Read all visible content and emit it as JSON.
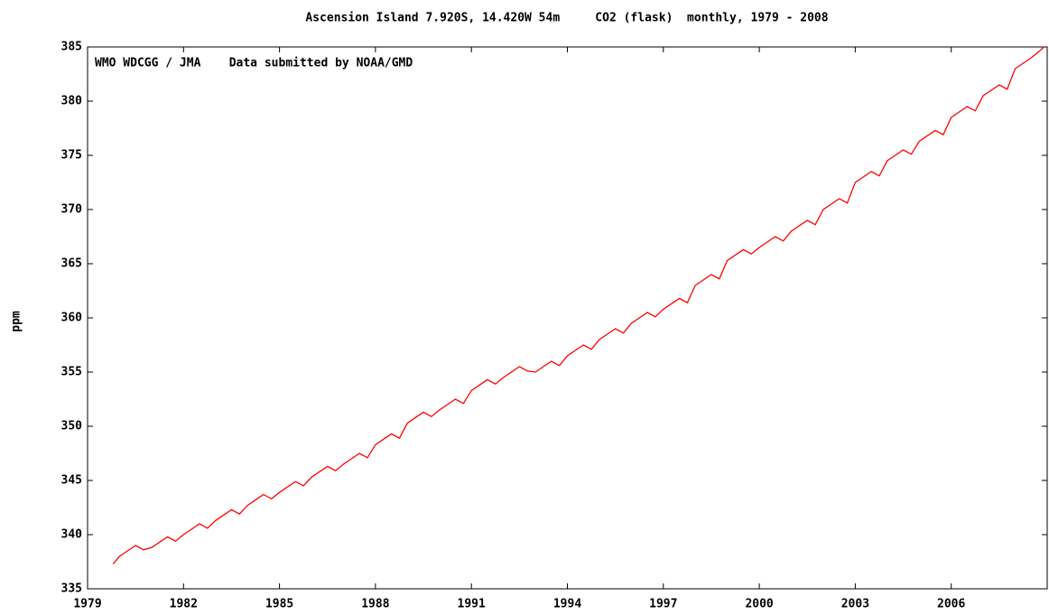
{
  "chart_data": {
    "type": "line",
    "title": "Ascension Island 7.920S, 14.420W 54m     CO2 (flask)  monthly, 1979 - 2008",
    "annotation": "WMO WDCGG / JMA    Data submitted by NOAA/GMD",
    "y_label": "ppm",
    "xlim": [
      1979,
      2009
    ],
    "xticks": [
      1979,
      1982,
      1985,
      1988,
      1991,
      1994,
      1997,
      2000,
      2003,
      2006
    ],
    "ylim": [
      335,
      385
    ],
    "yticks": [
      335,
      340,
      345,
      350,
      355,
      360,
      365,
      370,
      375,
      380,
      385
    ],
    "x": [
      1979.8,
      1980,
      1980.25,
      1980.5,
      1980.75,
      1981,
      1981.25,
      1981.5,
      1981.75,
      1982,
      1982.25,
      1982.5,
      1982.75,
      1983,
      1983.25,
      1983.5,
      1983.75,
      1984,
      1984.25,
      1984.5,
      1984.75,
      1985,
      1985.25,
      1985.5,
      1985.75,
      1986,
      1986.25,
      1986.5,
      1986.75,
      1987,
      1987.25,
      1987.5,
      1987.75,
      1988,
      1988.25,
      1988.5,
      1988.75,
      1989,
      1989.25,
      1989.5,
      1989.75,
      1990,
      1990.25,
      1990.5,
      1990.75,
      1991,
      1991.25,
      1991.5,
      1991.75,
      1992,
      1992.25,
      1992.5,
      1992.75,
      1993,
      1993.25,
      1993.5,
      1993.75,
      1994,
      1994.25,
      1994.5,
      1994.75,
      1995,
      1995.25,
      1995.5,
      1995.75,
      1996,
      1996.25,
      1996.5,
      1996.75,
      1997,
      1997.25,
      1997.5,
      1997.75,
      1998,
      1998.25,
      1998.5,
      1998.75,
      1999,
      1999.25,
      1999.5,
      1999.75,
      2000,
      2000.25,
      2000.5,
      2000.75,
      2001,
      2001.25,
      2001.5,
      2001.75,
      2002,
      2002.25,
      2002.5,
      2002.75,
      2003,
      2003.25,
      2003.5,
      2003.75,
      2004,
      2004.25,
      2004.5,
      2004.75,
      2005,
      2005.25,
      2005.5,
      2005.75,
      2006,
      2006.25,
      2006.5,
      2006.75,
      2007,
      2007.25,
      2007.5,
      2007.75,
      2008,
      2008.25,
      2008.5,
      2008.75,
      2008.9
    ],
    "series": [
      {
        "name": "CO2",
        "color": "#ff0000",
        "values": [
          337.3,
          338.0,
          338.5,
          339.0,
          338.6,
          338.8,
          339.3,
          339.8,
          339.4,
          340.0,
          340.5,
          341.0,
          340.6,
          341.3,
          341.8,
          342.3,
          341.9,
          342.7,
          343.2,
          343.7,
          343.3,
          343.9,
          344.4,
          344.9,
          344.5,
          345.3,
          345.8,
          346.3,
          345.9,
          346.5,
          347.0,
          347.5,
          347.1,
          348.3,
          348.8,
          349.3,
          348.9,
          350.3,
          350.8,
          351.3,
          350.9,
          351.5,
          352.0,
          352.5,
          352.1,
          353.3,
          353.8,
          354.3,
          353.9,
          354.5,
          355.0,
          355.5,
          355.1,
          355.0,
          355.5,
          356.0,
          355.6,
          356.5,
          357.0,
          357.5,
          357.1,
          358.0,
          358.5,
          359.0,
          358.6,
          359.5,
          360.0,
          360.5,
          360.1,
          360.8,
          361.3,
          361.8,
          361.4,
          363.0,
          363.5,
          364.0,
          363.6,
          365.3,
          365.8,
          366.3,
          365.9,
          366.5,
          367.0,
          367.5,
          367.1,
          368.0,
          368.5,
          369.0,
          368.6,
          370.0,
          370.5,
          371.0,
          370.6,
          372.5,
          373.0,
          373.5,
          373.1,
          374.5,
          375.0,
          375.5,
          375.1,
          376.3,
          376.8,
          377.3,
          376.9,
          378.5,
          379.0,
          379.5,
          379.1,
          380.5,
          381.0,
          381.5,
          381.1,
          383.0,
          383.5,
          384.0,
          384.6,
          385.0
        ]
      }
    ]
  }
}
